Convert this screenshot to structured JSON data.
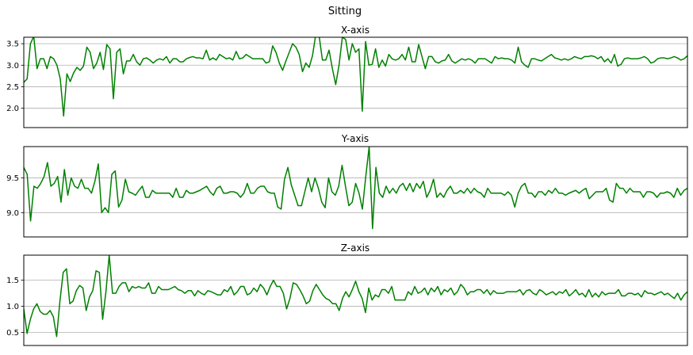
{
  "figure": {
    "title": "Sitting"
  },
  "chart_data": [
    {
      "type": "line",
      "title": "X-axis",
      "xlabel": "",
      "ylabel": "",
      "xlim": [
        0,
        249
      ],
      "ylim": [
        1.55,
        3.65
      ],
      "yticks": [
        2.0,
        2.5,
        3.0,
        3.5
      ],
      "ytick_labels": [
        "2.0",
        "2.5",
        "3.0",
        "3.5"
      ],
      "grid": "horizontal",
      "legend": "none",
      "color": "#008000",
      "series": [
        {
          "values": [
            2.6,
            2.68,
            3.5,
            3.67,
            2.92,
            3.15,
            3.15,
            2.92,
            3.2,
            3.15,
            3.0,
            2.68,
            1.82,
            2.8,
            2.62,
            2.82,
            2.95,
            2.88,
            2.98,
            3.42,
            3.3,
            2.92,
            3.05,
            3.3,
            2.9,
            3.48,
            3.38,
            2.22,
            3.3,
            3.38,
            2.8,
            3.1,
            3.1,
            3.25,
            3.08,
            3.0,
            3.15,
            3.17,
            3.12,
            3.05,
            3.12,
            3.15,
            3.12,
            3.2,
            3.05,
            3.15,
            3.15,
            3.08,
            3.08,
            3.15,
            3.18,
            3.2,
            3.17,
            3.17,
            3.15,
            3.35,
            3.12,
            3.17,
            3.12,
            3.25,
            3.2,
            3.15,
            3.17,
            3.12,
            3.32,
            3.15,
            3.17,
            3.25,
            3.2,
            3.15,
            3.15,
            3.15,
            3.15,
            3.05,
            3.08,
            3.45,
            3.3,
            3.05,
            2.88,
            3.1,
            3.3,
            3.5,
            3.42,
            3.25,
            2.85,
            3.05,
            2.95,
            3.22,
            3.72,
            3.68,
            3.12,
            3.12,
            3.35,
            2.92,
            2.55,
            3.0,
            3.65,
            3.6,
            3.12,
            3.5,
            3.3,
            3.38,
            1.93,
            3.55,
            3.0,
            3.02,
            3.38,
            2.95,
            3.12,
            2.98,
            3.25,
            3.15,
            3.12,
            3.15,
            3.25,
            3.12,
            3.42,
            3.08,
            3.08,
            3.48,
            3.2,
            2.92,
            3.2,
            3.2,
            3.08,
            3.05,
            3.1,
            3.12,
            3.25,
            3.1,
            3.05,
            3.1,
            3.15,
            3.12,
            3.15,
            3.12,
            3.05,
            3.15,
            3.15,
            3.15,
            3.1,
            3.05,
            3.2,
            3.15,
            3.17,
            3.15,
            3.15,
            3.12,
            3.05,
            3.42,
            3.08,
            3.0,
            2.95,
            3.15,
            3.15,
            3.12,
            3.1,
            3.15,
            3.2,
            3.25,
            3.17,
            3.15,
            3.12,
            3.15,
            3.12,
            3.15,
            3.2,
            3.17,
            3.15,
            3.2,
            3.2,
            3.22,
            3.2,
            3.15,
            3.2,
            3.08,
            3.15,
            3.05,
            3.25,
            2.98,
            3.02,
            3.15,
            3.17,
            3.15,
            3.15,
            3.15,
            3.17,
            3.2,
            3.15,
            3.05,
            3.08,
            3.15,
            3.17,
            3.17,
            3.15,
            3.17,
            3.2,
            3.17,
            3.12,
            3.15,
            3.22
          ]
        }
      ]
    },
    {
      "type": "line",
      "title": "Y-axis",
      "xlabel": "",
      "ylabel": "",
      "xlim": [
        0,
        249
      ],
      "ylim": [
        8.65,
        9.95
      ],
      "yticks": [
        9.0,
        9.5
      ],
      "ytick_labels": [
        "9.0",
        "9.5"
      ],
      "grid": "horizontal",
      "legend": "none",
      "color": "#008000",
      "series": [
        {
          "values": [
            9.65,
            9.55,
            8.88,
            9.38,
            9.35,
            9.42,
            9.52,
            9.72,
            9.38,
            9.42,
            9.52,
            9.15,
            9.62,
            9.25,
            9.5,
            9.38,
            9.35,
            9.48,
            9.35,
            9.35,
            9.28,
            9.45,
            9.7,
            9.0,
            9.07,
            9.0,
            9.55,
            9.6,
            9.08,
            9.18,
            9.48,
            9.3,
            9.28,
            9.25,
            9.32,
            9.38,
            9.22,
            9.22,
            9.32,
            9.28,
            9.28,
            9.28,
            9.28,
            9.28,
            9.22,
            9.35,
            9.22,
            9.22,
            9.32,
            9.28,
            9.28,
            9.3,
            9.32,
            9.35,
            9.38,
            9.3,
            9.25,
            9.35,
            9.38,
            9.28,
            9.28,
            9.3,
            9.3,
            9.28,
            9.22,
            9.28,
            9.42,
            9.28,
            9.28,
            9.35,
            9.38,
            9.38,
            9.3,
            9.28,
            9.28,
            9.08,
            9.05,
            9.48,
            9.65,
            9.4,
            9.25,
            9.1,
            9.1,
            9.3,
            9.5,
            9.3,
            9.5,
            9.35,
            9.15,
            9.07,
            9.5,
            9.3,
            9.25,
            9.38,
            9.68,
            9.38,
            9.1,
            9.15,
            9.42,
            9.28,
            9.05,
            9.52,
            9.95,
            8.77,
            9.65,
            9.28,
            9.22,
            9.38,
            9.28,
            9.35,
            9.28,
            9.38,
            9.42,
            9.32,
            9.42,
            9.3,
            9.42,
            9.35,
            9.45,
            9.22,
            9.32,
            9.48,
            9.22,
            9.28,
            9.22,
            9.32,
            9.38,
            9.28,
            9.28,
            9.32,
            9.28,
            9.35,
            9.28,
            9.35,
            9.3,
            9.28,
            9.22,
            9.35,
            9.28,
            9.28,
            9.28,
            9.28,
            9.25,
            9.3,
            9.25,
            9.08,
            9.28,
            9.38,
            9.42,
            9.28,
            9.28,
            9.22,
            9.3,
            9.3,
            9.25,
            9.32,
            9.28,
            9.35,
            9.28,
            9.28,
            9.25,
            9.28,
            9.3,
            9.32,
            9.28,
            9.32,
            9.35,
            9.2,
            9.25,
            9.3,
            9.3,
            9.3,
            9.35,
            9.18,
            9.15,
            9.42,
            9.35,
            9.35,
            9.28,
            9.35,
            9.3,
            9.3,
            9.3,
            9.22,
            9.3,
            9.3,
            9.28,
            9.22,
            9.28,
            9.28,
            9.3,
            9.28,
            9.22,
            9.35,
            9.25,
            9.32,
            9.35
          ]
        }
      ]
    },
    {
      "type": "line",
      "title": "Z-axis",
      "xlabel": "",
      "ylabel": "",
      "xlim": [
        0,
        249
      ],
      "ylim": [
        0.25,
        1.98
      ],
      "yticks": [
        0.5,
        1.0,
        1.5
      ],
      "ytick_labels": [
        "0.5",
        "1.0",
        "1.5"
      ],
      "grid": "horizontal",
      "legend": "none",
      "color": "#008000",
      "series": [
        {
          "values": [
            0.95,
            0.48,
            0.75,
            0.95,
            1.05,
            0.9,
            0.85,
            0.85,
            0.92,
            0.8,
            0.42,
            1.1,
            1.65,
            1.72,
            1.05,
            1.1,
            1.3,
            1.4,
            1.35,
            0.92,
            1.18,
            1.3,
            1.68,
            1.65,
            0.75,
            1.28,
            1.98,
            1.25,
            1.25,
            1.38,
            1.45,
            1.45,
            1.28,
            1.38,
            1.35,
            1.38,
            1.35,
            1.35,
            1.45,
            1.25,
            1.25,
            1.38,
            1.32,
            1.32,
            1.32,
            1.35,
            1.38,
            1.32,
            1.3,
            1.25,
            1.3,
            1.3,
            1.2,
            1.3,
            1.25,
            1.22,
            1.3,
            1.28,
            1.25,
            1.22,
            1.22,
            1.32,
            1.28,
            1.38,
            1.22,
            1.28,
            1.38,
            1.38,
            1.22,
            1.25,
            1.35,
            1.28,
            1.42,
            1.35,
            1.22,
            1.38,
            1.5,
            1.38,
            1.38,
            1.25,
            0.95,
            1.15,
            1.45,
            1.42,
            1.32,
            1.2,
            1.05,
            1.1,
            1.3,
            1.42,
            1.32,
            1.22,
            1.15,
            1.12,
            1.05,
            1.05,
            0.92,
            1.15,
            1.28,
            1.18,
            1.32,
            1.48,
            1.28,
            1.15,
            0.88,
            1.35,
            1.12,
            1.22,
            1.18,
            1.32,
            1.32,
            1.25,
            1.38,
            1.12,
            1.12,
            1.12,
            1.12,
            1.28,
            1.22,
            1.38,
            1.25,
            1.28,
            1.35,
            1.22,
            1.35,
            1.28,
            1.38,
            1.22,
            1.32,
            1.28,
            1.35,
            1.22,
            1.28,
            1.42,
            1.35,
            1.22,
            1.28,
            1.28,
            1.32,
            1.32,
            1.25,
            1.32,
            1.22,
            1.3,
            1.25,
            1.25,
            1.25,
            1.28,
            1.28,
            1.28,
            1.28,
            1.32,
            1.22,
            1.3,
            1.32,
            1.25,
            1.22,
            1.32,
            1.28,
            1.22,
            1.25,
            1.28,
            1.22,
            1.28,
            1.25,
            1.32,
            1.2,
            1.25,
            1.32,
            1.22,
            1.25,
            1.18,
            1.32,
            1.18,
            1.25,
            1.18,
            1.28,
            1.22,
            1.25,
            1.25,
            1.25,
            1.32,
            1.2,
            1.2,
            1.25,
            1.25,
            1.22,
            1.25,
            1.18,
            1.3,
            1.25,
            1.25,
            1.22,
            1.25,
            1.28,
            1.22,
            1.25,
            1.2,
            1.15,
            1.25,
            1.12,
            1.22,
            1.28
          ]
        }
      ]
    }
  ]
}
